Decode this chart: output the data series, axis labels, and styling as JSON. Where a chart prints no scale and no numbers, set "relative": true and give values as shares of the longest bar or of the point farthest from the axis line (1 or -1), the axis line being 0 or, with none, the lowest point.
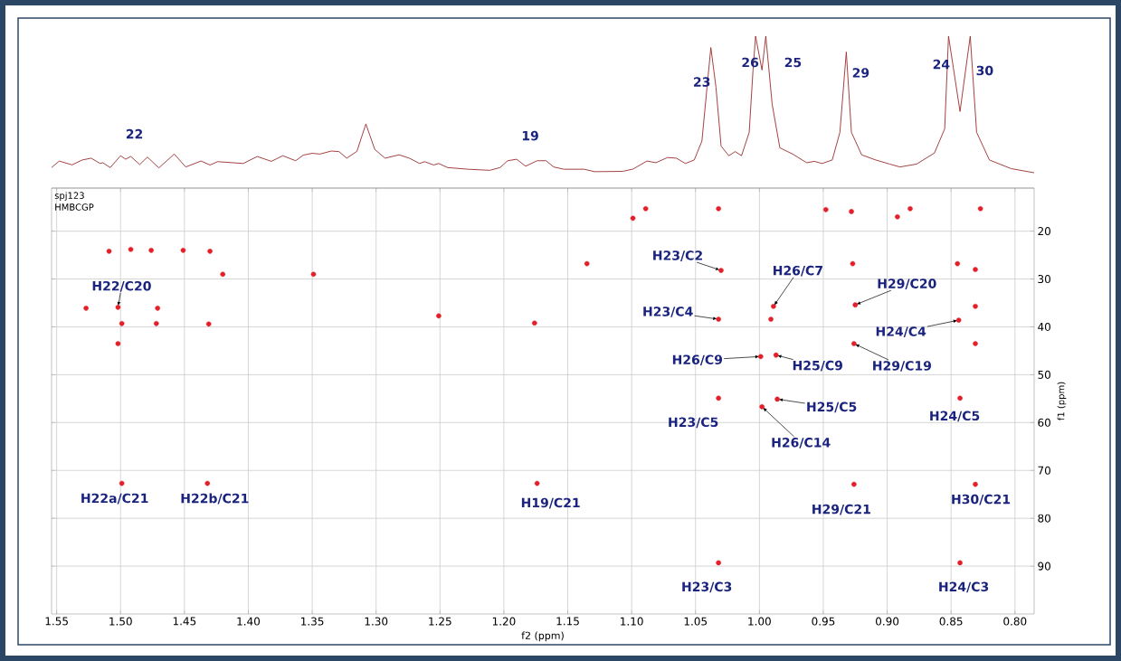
{
  "chart_data": [
    {
      "type": "line",
      "relative": true,
      "xlim": [
        1.554,
        0.785
      ],
      "tick_labels": false,
      "marker": "none",
      "line_style": "solid",
      "series": [
        {
          "color": "#9b2d2d",
          "x": [
            1.554,
            1.548,
            1.538,
            1.53,
            1.523,
            1.516,
            1.514,
            1.508,
            1.5,
            1.496,
            1.492,
            1.485,
            1.479,
            1.47,
            1.458,
            1.449,
            1.437,
            1.43,
            1.424,
            1.404,
            1.393,
            1.382,
            1.373,
            1.363,
            1.357,
            1.35,
            1.344,
            1.335,
            1.329,
            1.323,
            1.315,
            1.308,
            1.301,
            1.293,
            1.282,
            1.274,
            1.266,
            1.262,
            1.255,
            1.251,
            1.244,
            1.228,
            1.211,
            1.203,
            1.197,
            1.19,
            1.183,
            1.174,
            1.167,
            1.161,
            1.153,
            1.137,
            1.129,
            1.107,
            1.099,
            1.088,
            1.081,
            1.072,
            1.065,
            1.058,
            1.051,
            1.045,
            1.041,
            1.038,
            1.034,
            1.03,
            1.024,
            1.019,
            1.014,
            1.008,
            1.005,
            1.003,
            0.998,
            0.995,
            0.99,
            0.984,
            0.974,
            0.963,
            0.957,
            0.951,
            0.943,
            0.937,
            0.932,
            0.928,
            0.92,
            0.909,
            0.898,
            0.89,
            0.877,
            0.863,
            0.855,
            0.852,
            0.843,
            0.835,
            0.83,
            0.82,
            0.803,
            0.785
          ],
          "values": [
            0.135,
            0.178,
            0.153,
            0.185,
            0.197,
            0.162,
            0.167,
            0.135,
            0.213,
            0.19,
            0.208,
            0.155,
            0.204,
            0.133,
            0.224,
            0.139,
            0.178,
            0.152,
            0.174,
            0.162,
            0.208,
            0.176,
            0.213,
            0.18,
            0.217,
            0.229,
            0.224,
            0.244,
            0.24,
            0.197,
            0.242,
            0.422,
            0.254,
            0.197,
            0.219,
            0.197,
            0.162,
            0.174,
            0.152,
            0.162,
            0.135,
            0.124,
            0.117,
            0.135,
            0.18,
            0.19,
            0.144,
            0.18,
            0.18,
            0.139,
            0.124,
            0.124,
            0.108,
            0.11,
            0.125,
            0.178,
            0.167,
            0.201,
            0.197,
            0.162,
            0.185,
            0.31,
            0.664,
            0.925,
            0.664,
            0.277,
            0.213,
            0.24,
            0.213,
            0.367,
            0.777,
            1,
            0.777,
            1,
            0.55,
            0.265,
            0.224,
            0.167,
            0.176,
            0.162,
            0.185,
            0.367,
            0.896,
            0.367,
            0.219,
            0.185,
            0.158,
            0.139,
            0.158,
            0.231,
            0.39,
            1,
            0.504,
            1,
            0.367,
            0.185,
            0.128,
            0.101
          ]
        }
      ],
      "annotations": [
        {
          "text": "22",
          "x": 1.492,
          "y": 0.208
        },
        {
          "text": "19",
          "x": 1.19,
          "y": 0.19
        },
        {
          "text": "23",
          "x": 1.038,
          "y": 0.925
        },
        {
          "text": "26",
          "x": 1.003,
          "y": 1
        },
        {
          "text": "25",
          "x": 0.995,
          "y": 1
        },
        {
          "text": "29",
          "x": 0.932,
          "y": 0.896
        },
        {
          "text": "24",
          "x": 0.852,
          "y": 1
        },
        {
          "text": "30",
          "x": 0.835,
          "y": 1
        }
      ]
    },
    {
      "type": "scatter",
      "xlabel": "f2 (ppm)",
      "ylabel": "f1 (ppm)",
      "xlim": [
        1.554,
        0.785
      ],
      "ylim": [
        100,
        11
      ],
      "grid": true,
      "marker": "circle",
      "xticks": [
        1.55,
        {
          "value": 1.5,
          "label": "1.50"
        },
        1.45,
        {
          "value": 1.4,
          "label": "1.40"
        },
        1.35,
        {
          "value": 1.3,
          "label": "1.30"
        },
        1.25,
        {
          "value": 1.2,
          "label": "1.20"
        },
        1.15,
        {
          "value": 1.1,
          "label": "1.10"
        },
        1.05,
        {
          "value": 1.0,
          "label": "1.00"
        },
        0.95,
        {
          "value": 0.9,
          "label": "0.90"
        },
        0.85,
        {
          "value": 0.8,
          "label": "0.80"
        }
      ],
      "yticks": [
        20,
        30,
        40,
        50,
        60,
        70,
        80,
        90
      ],
      "series": [
        {
          "color": "#e3202a",
          "x": [
            1.502,
            1.499,
            1.432,
            1.174,
            1.03,
            0.989,
            1.032,
            0.925,
            0.844,
            0.999,
            0.987,
            0.926,
            0.986,
            0.998,
            1.032,
            0.843,
            0.926,
            0.831,
            1.032,
            0.843,
            1.099,
            1.089,
            1.032,
            0.948,
            0.928,
            0.892,
            0.882,
            0.827,
            1.135,
            0.927,
            0.845,
            0.831,
            0.831,
            0.831,
            0.991,
            1.509,
            1.492,
            1.476,
            1.451,
            1.43,
            1.42,
            1.349,
            1.251,
            1.176,
            1.527,
            1.471,
            1.499,
            1.472,
            1.431,
            1.502
          ],
          "values": [
            35.9,
            72.7,
            72.7,
            72.7,
            28.2,
            35.7,
            38.4,
            35.4,
            38.6,
            46.2,
            45.9,
            43.5,
            55.1,
            56.7,
            54.9,
            54.9,
            72.9,
            72.9,
            89.3,
            89.3,
            17.3,
            15.3,
            15.3,
            15.5,
            15.9,
            17.0,
            15.3,
            15.3,
            26.8,
            26.8,
            26.8,
            28.0,
            35.7,
            43.5,
            38.4,
            24.2,
            23.8,
            24.0,
            24.0,
            24.2,
            29.0,
            29.0,
            37.7,
            39.2,
            36.1,
            36.1,
            39.3,
            39.3,
            39.4,
            43.5
          ]
        }
      ],
      "annotations": [
        {
          "text": "H22/C20",
          "x": 1.502,
          "y": 35.9
        },
        {
          "text": "H22a/C21",
          "x": 1.499,
          "y": 72.7
        },
        {
          "text": "H22b/C21",
          "x": 1.432,
          "y": 72.7
        },
        {
          "text": "H19/C21",
          "x": 1.174,
          "y": 72.7
        },
        {
          "text": "H23/C2",
          "x": 1.03,
          "y": 28.2
        },
        {
          "text": "H26/C7",
          "x": 0.989,
          "y": 35.7
        },
        {
          "text": "H23/C4",
          "x": 1.032,
          "y": 38.4
        },
        {
          "text": "H29/C20",
          "x": 0.925,
          "y": 35.4
        },
        {
          "text": "H24/C4",
          "x": 0.844,
          "y": 38.6
        },
        {
          "text": "H26/C9",
          "x": 0.999,
          "y": 46.2
        },
        {
          "text": "H25/C9",
          "x": 0.987,
          "y": 45.9
        },
        {
          "text": "H29/C19",
          "x": 0.926,
          "y": 43.5
        },
        {
          "text": "H25/C5",
          "x": 0.986,
          "y": 55.1
        },
        {
          "text": "H26/C14",
          "x": 0.998,
          "y": 56.7
        },
        {
          "text": "H23/C5",
          "x": 1.032,
          "y": 54.9
        },
        {
          "text": "H24/C5",
          "x": 0.843,
          "y": 54.9
        },
        {
          "text": "H29/C21",
          "x": 0.926,
          "y": 72.9
        },
        {
          "text": "H30/C21",
          "x": 0.831,
          "y": 72.9
        },
        {
          "text": "H23/C3",
          "x": 1.032,
          "y": 89.3
        },
        {
          "text": "H24/C3",
          "x": 0.843,
          "y": 89.3
        },
        "spj123",
        "HMBCGP"
      ]
    }
  ]
}
